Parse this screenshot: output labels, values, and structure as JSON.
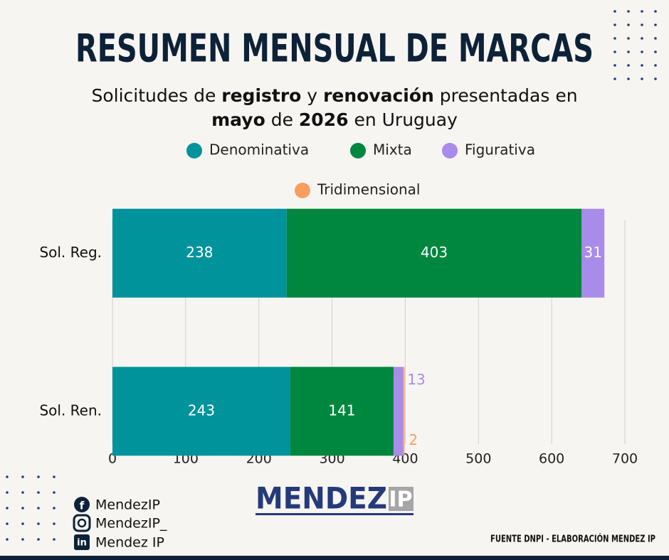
{
  "chart_data": {
    "type": "stacked-bar-horizontal",
    "title": "RESUMEN MENSUAL DE MARCAS",
    "subtitle": [
      [
        {
          "text": "Solicitudes de ",
          "bold": false
        },
        {
          "text": "registro",
          "bold": true
        },
        {
          "text": " y ",
          "bold": false
        },
        {
          "text": "renovación",
          "bold": true
        },
        {
          "text": " presentadas en",
          "bold": false
        }
      ],
      [
        {
          "text": "mayo",
          "bold": true
        },
        {
          "text": " de ",
          "bold": false
        },
        {
          "text": "2026",
          "bold": true
        },
        {
          "text": " en Uruguay",
          "bold": false
        }
      ]
    ],
    "categories": [
      "Sol. Reg.",
      "Sol. Ren."
    ],
    "series": [
      {
        "name": "Denominativa",
        "color": "#00939b",
        "values": [
          238,
          243
        ]
      },
      {
        "name": "Mixta",
        "color": "#00873f",
        "values": [
          403,
          141
        ]
      },
      {
        "name": "Figurativa",
        "color": "#a98be9",
        "values": [
          31,
          13
        ]
      },
      {
        "name": "Tridimensional",
        "color": "#f89f5f",
        "values": [
          null,
          2
        ]
      }
    ],
    "xlim": [
      0,
      700
    ],
    "xticks": [
      0,
      100,
      200,
      300,
      400,
      500,
      600,
      700
    ],
    "grid": true
  },
  "footer": {
    "social": [
      "MendezIP",
      "MendezIP_",
      "Mendez IP"
    ],
    "logo": [
      "MENDEZ",
      "IP"
    ],
    "source": "FUENTE DNPI - ELABORACIÓN MENDEZ IP"
  }
}
